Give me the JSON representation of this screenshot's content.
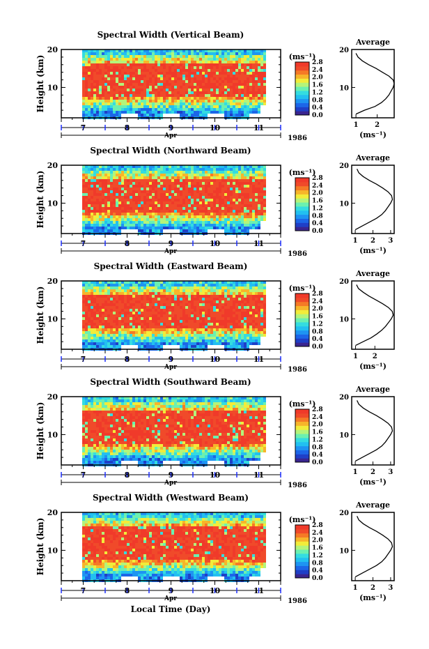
{
  "figure": {
    "xlabel": "Local Time (Day)",
    "month": "Apr",
    "year": "1986",
    "unit_label": "(ms⁻¹)",
    "avg_title": "Average",
    "avg_xlabel": "(ms⁻¹)",
    "ylabel": "Height (km)",
    "colors": [
      "#3a2590",
      "#1f3fc7",
      "#1c66e8",
      "#1e94f2",
      "#22c0f0",
      "#34dce0",
      "#6bf0b0",
      "#b4f47a",
      "#f2ec3a",
      "#f7b52a",
      "#f57a26",
      "#f04a2a",
      "#f03a2a"
    ]
  },
  "chart_data": [
    {
      "type": "heatmap",
      "title": "Spectral Width (Vertical Beam)",
      "x": {
        "label": "Local Time (Day)",
        "range": [
          6.5,
          11.5
        ],
        "ticks": [
          "7",
          "8",
          "9",
          "10",
          "11"
        ],
        "unit": "Apr 1986"
      },
      "y": {
        "label": "Height (km)",
        "range": [
          2,
          20
        ],
        "ticks": [
          "10",
          "20"
        ]
      },
      "colorbar": {
        "label": "(ms⁻¹)",
        "range": [
          0,
          2.8
        ],
        "ticks": [
          "0.0",
          "0.4",
          "0.8",
          "1.2",
          "1.6",
          "2.0",
          "2.4",
          "2.8"
        ]
      },
      "average": {
        "title": "Average",
        "xlabel": "(ms⁻¹)",
        "xlim": [
          0.8,
          2.8
        ],
        "xticks": [
          "1",
          "2"
        ],
        "height": [
          3,
          4,
          5,
          6,
          7,
          8,
          9,
          10,
          11,
          12,
          13,
          14,
          15,
          16,
          17,
          18,
          19
        ],
        "value": [
          1.0,
          1.4,
          1.9,
          2.2,
          2.4,
          2.55,
          2.65,
          2.75,
          2.8,
          2.75,
          2.55,
          2.25,
          1.95,
          1.6,
          1.3,
          1.1,
          1.0
        ]
      }
    },
    {
      "type": "heatmap",
      "title": "Spectral Width (Northward Beam)",
      "x": {
        "label": "Local Time (Day)",
        "range": [
          6.5,
          11.5
        ],
        "ticks": [
          "7",
          "8",
          "9",
          "10",
          "11"
        ],
        "unit": "Apr 1986"
      },
      "y": {
        "label": "Height (km)",
        "range": [
          2,
          20
        ],
        "ticks": [
          "10",
          "20"
        ]
      },
      "colorbar": {
        "label": "(ms⁻¹)",
        "range": [
          0,
          2.8
        ],
        "ticks": [
          "0.0",
          "0.4",
          "0.8",
          "1.2",
          "1.6",
          "2.0",
          "2.4",
          "2.8"
        ]
      },
      "average": {
        "title": "Average",
        "xlabel": "(ms⁻¹)",
        "xlim": [
          0.8,
          3.2
        ],
        "xticks": [
          "1",
          "2",
          "3"
        ],
        "height": [
          3,
          4,
          5,
          6,
          7,
          8,
          9,
          10,
          11,
          12,
          13,
          14,
          15,
          16,
          17,
          18,
          19
        ],
        "value": [
          1.0,
          1.4,
          1.8,
          2.2,
          2.5,
          2.7,
          2.85,
          3.0,
          3.1,
          3.05,
          2.85,
          2.55,
          2.2,
          1.8,
          1.45,
          1.2,
          1.1
        ]
      }
    },
    {
      "type": "heatmap",
      "title": "Spectral Width (Eastward Beam)",
      "x": {
        "label": "Local Time (Day)",
        "range": [
          6.5,
          11.5
        ],
        "ticks": [
          "7",
          "8",
          "9",
          "10",
          "11"
        ],
        "unit": "Apr 1986"
      },
      "y": {
        "label": "Height (km)",
        "range": [
          2,
          20
        ],
        "ticks": [
          "10",
          "20"
        ]
      },
      "colorbar": {
        "label": "(ms⁻¹)",
        "range": [
          0,
          2.8
        ],
        "ticks": [
          "0.0",
          "0.4",
          "0.8",
          "1.2",
          "1.6",
          "2.0",
          "2.4",
          "2.8"
        ]
      },
      "average": {
        "title": "Average",
        "xlabel": "(ms⁻¹)",
        "xlim": [
          0.8,
          3.0
        ],
        "xticks": [
          "1",
          "2"
        ],
        "height": [
          3,
          4,
          5,
          6,
          7,
          8,
          9,
          10,
          11,
          12,
          13,
          14,
          15,
          16,
          17,
          18,
          19
        ],
        "value": [
          1.0,
          1.4,
          1.8,
          2.1,
          2.35,
          2.55,
          2.7,
          2.85,
          2.95,
          2.9,
          2.7,
          2.4,
          2.05,
          1.7,
          1.4,
          1.15,
          1.05
        ]
      }
    },
    {
      "type": "heatmap",
      "title": "Spectral Width (Southward Beam)",
      "x": {
        "label": "Local Time (Day)",
        "range": [
          6.5,
          11.5
        ],
        "ticks": [
          "7",
          "8",
          "9",
          "10",
          "11"
        ],
        "unit": "Apr 1986"
      },
      "y": {
        "label": "Height (km)",
        "range": [
          2,
          20
        ],
        "ticks": [
          "10",
          "20"
        ]
      },
      "colorbar": {
        "label": "(ms⁻¹)",
        "range": [
          0,
          2.8
        ],
        "ticks": [
          "0.0",
          "0.4",
          "0.8",
          "1.2",
          "1.6",
          "2.0",
          "2.4",
          "2.8"
        ]
      },
      "average": {
        "title": "Average",
        "xlabel": "(ms⁻¹)",
        "xlim": [
          0.8,
          3.2
        ],
        "xticks": [
          "1",
          "2",
          "3"
        ],
        "height": [
          3,
          4,
          5,
          6,
          7,
          8,
          9,
          10,
          11,
          12,
          13,
          14,
          15,
          16,
          17,
          18,
          19
        ],
        "value": [
          1.0,
          1.4,
          1.8,
          2.2,
          2.5,
          2.7,
          2.85,
          3.0,
          3.1,
          3.05,
          2.85,
          2.55,
          2.2,
          1.8,
          1.45,
          1.2,
          1.1
        ]
      }
    },
    {
      "type": "heatmap",
      "title": "Spectral Width (Westward Beam)",
      "x": {
        "label": "Local Time (Day)",
        "range": [
          6.5,
          11.5
        ],
        "ticks": [
          "7",
          "8",
          "9",
          "10",
          "11"
        ],
        "unit": "Apr 1986"
      },
      "y": {
        "label": "Height (km)",
        "range": [
          2,
          20
        ],
        "ticks": [
          "10",
          "20"
        ]
      },
      "colorbar": {
        "label": "(ms⁻¹)",
        "range": [
          0,
          2.8
        ],
        "ticks": [
          "0.0",
          "0.4",
          "0.8",
          "1.2",
          "1.6",
          "2.0",
          "2.4",
          "2.8"
        ]
      },
      "average": {
        "title": "Average",
        "xlabel": "(ms⁻¹)",
        "xlim": [
          0.8,
          3.2
        ],
        "xticks": [
          "1",
          "2",
          "3"
        ],
        "height": [
          3,
          4,
          5,
          6,
          7,
          8,
          9,
          10,
          11,
          12,
          13,
          14,
          15,
          16,
          17,
          18,
          19
        ],
        "value": [
          1.0,
          1.4,
          1.8,
          2.2,
          2.5,
          2.7,
          2.85,
          3.0,
          3.1,
          3.05,
          2.85,
          2.55,
          2.2,
          1.8,
          1.45,
          1.2,
          1.1
        ]
      }
    }
  ]
}
